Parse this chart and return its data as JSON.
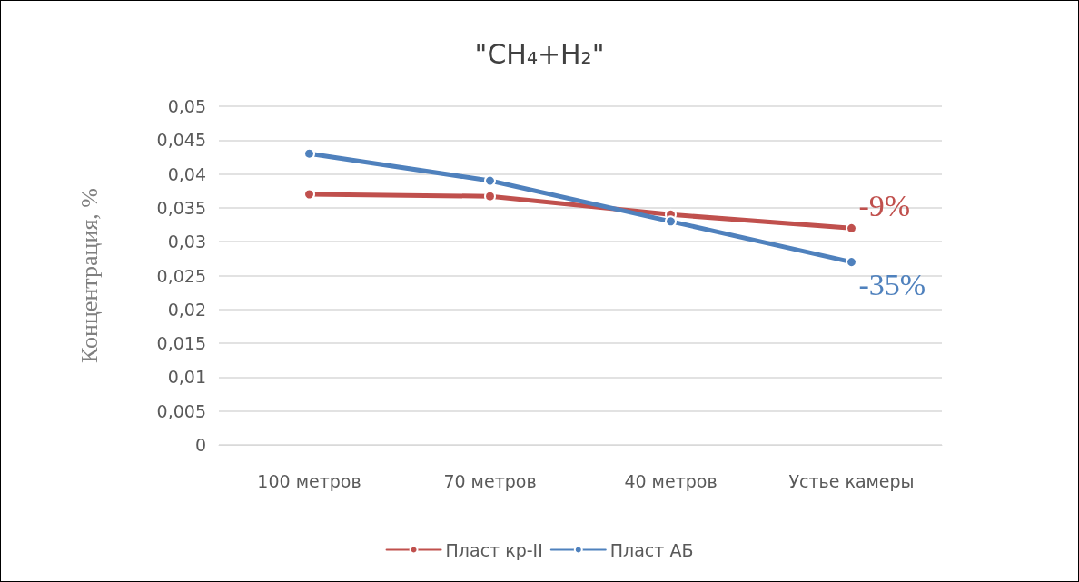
{
  "chart_data": {
    "type": "line",
    "title": "\"CH₄+H₂\"",
    "ylabel": "Концентрация, %",
    "categories": [
      "100 метров",
      "70 метров",
      "40 метров",
      "Устье камеры"
    ],
    "series": [
      {
        "name": "Пласт кр-II",
        "color": "#c0504d",
        "values": [
          0.037,
          0.0367,
          0.034,
          0.032
        ]
      },
      {
        "name": "Пласт АБ",
        "color": "#4f81bd",
        "values": [
          0.043,
          0.039,
          0.033,
          0.027
        ]
      }
    ],
    "ylim": [
      0,
      0.05
    ],
    "yticks": [
      {
        "value": 0,
        "label": "0"
      },
      {
        "value": 0.005,
        "label": "0,005"
      },
      {
        "value": 0.01,
        "label": "0,01"
      },
      {
        "value": 0.015,
        "label": "0,015"
      },
      {
        "value": 0.02,
        "label": "0,02"
      },
      {
        "value": 0.025,
        "label": "0,025"
      },
      {
        "value": 0.03,
        "label": "0,03"
      },
      {
        "value": 0.035,
        "label": "0,035"
      },
      {
        "value": 0.04,
        "label": "0,04"
      },
      {
        "value": 0.045,
        "label": "0,045"
      },
      {
        "value": 0.05,
        "label": "0,05"
      }
    ],
    "annotations": [
      {
        "text": "-9%",
        "x": "Устье камеры",
        "y": 0.032
      },
      {
        "text": "-35%",
        "x": "Устье камеры",
        "y": 0.027
      }
    ],
    "grid": "y",
    "legend": "bottom",
    "marker": "circle",
    "line_style": "solid"
  }
}
